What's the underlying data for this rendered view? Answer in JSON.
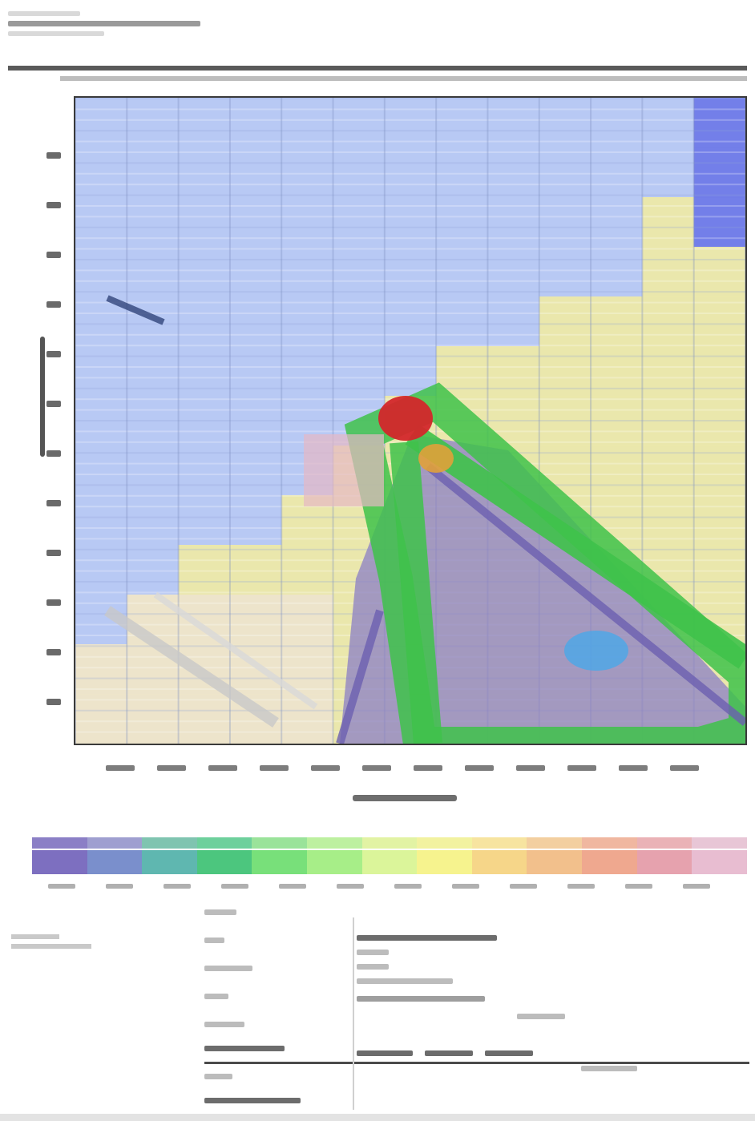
{
  "title": "",
  "subtitle": "",
  "map": {
    "grid_rows": 13,
    "grid_cols": 13,
    "palette": {
      "water_blue": "#b7c9f3",
      "pale_yellow": "#ece9a8",
      "cream": "#efe6c8",
      "green": "#3fc24a",
      "purple": "#8b7fc6",
      "red": "#d3272b",
      "pink": "#e6b8c4",
      "dark": "#3a3a3a"
    },
    "features": [
      {
        "name": "peak-red",
        "color": "#d3272b"
      },
      {
        "name": "ridge-green",
        "color": "#3fc24a"
      },
      {
        "name": "valley-purple",
        "color": "#8b7fc6"
      }
    ]
  },
  "colorbar": {
    "colors_top": [
      "#8b7fc6",
      "#9f9fd0",
      "#7fc4b0",
      "#6dd09c",
      "#9ae39a",
      "#bdf0a0",
      "#e2f3a4",
      "#f2f2a0",
      "#f7e4a0",
      "#f3cfa0",
      "#f0b7a0",
      "#eab2b6",
      "#e8c6d6"
    ],
    "colors_bottom": [
      "#7d6fc0",
      "#7a8fcc",
      "#5fb7b0",
      "#4cc67e",
      "#78e07a",
      "#a7ee88",
      "#dbf59a",
      "#f6f38e",
      "#f6d689",
      "#f2c08c",
      "#efa88f",
      "#e6a2ae",
      "#e8bdd1"
    ]
  }
}
